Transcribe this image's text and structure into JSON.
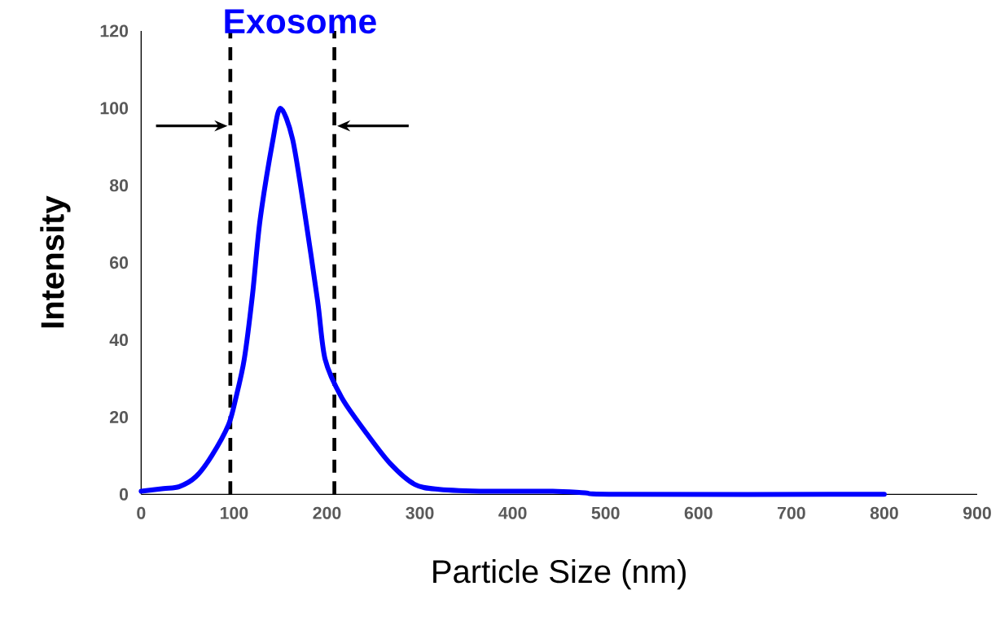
{
  "chart_data": {
    "type": "line",
    "title": "Exosome",
    "xlabel": "Particle Size (nm)",
    "ylabel": "Intensity",
    "x": [
      0,
      24,
      41,
      59,
      76,
      94,
      102,
      111,
      120,
      128,
      142,
      150,
      163,
      176,
      190,
      198,
      216,
      242,
      268,
      295,
      321,
      373,
      443,
      478,
      513,
      800
    ],
    "series": [
      {
        "color": "#0000ff",
        "values": [
          0.8,
          1.5,
          2,
          4.6,
          10,
          18,
          25,
          35,
          52,
          71,
          92,
          100,
          92,
          73,
          50,
          35,
          25,
          16,
          8,
          2.5,
          1.3,
          0.8,
          0.8,
          0.4,
          0,
          0
        ]
      }
    ],
    "xlim": [
      0,
      900
    ],
    "ylim": [
      0,
      120
    ],
    "xticks": [
      0,
      100,
      200,
      300,
      400,
      500,
      600,
      700,
      800,
      900
    ],
    "yticks": [
      0,
      20,
      40,
      60,
      80,
      100,
      120
    ],
    "grid": false,
    "marker": "none",
    "line_style": "solid",
    "ref_lines": [
      {
        "axis": "x",
        "value": 96,
        "line_style": "dashed",
        "color": "#000000"
      },
      {
        "axis": "x",
        "value": 208,
        "line_style": "dashed",
        "color": "#000000"
      }
    ]
  }
}
